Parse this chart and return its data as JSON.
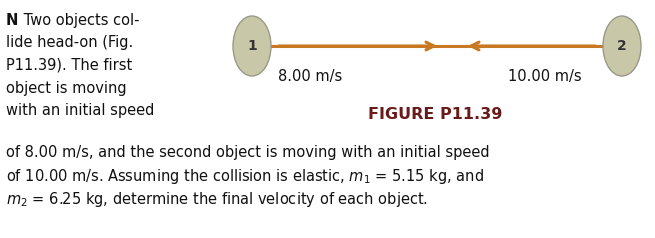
{
  "bg_color": "#ffffff",
  "ball_color": "#c8c8a8",
  "ball_edge_color": "#999988",
  "arrow_color": "#c87820",
  "arrow_lw": 2.2,
  "arrow_mutation_scale": 14,
  "label1": "1",
  "label2": "2",
  "speed1_text": "8.00 m/s",
  "speed2_text": "10.00 m/s",
  "figure_caption": "FIGURE P11.39",
  "caption_color": "#6b1a1a",
  "text_color": "#111111",
  "bold_n": "N",
  "left_lines": [
    " Two objects col-",
    "lide head-on (Fig.",
    "P11.39). The first",
    "object is moving",
    "with an initial speed"
  ],
  "bottom_lines": [
    "of 8.00 m/s, and the second object is moving with an initial speed",
    "of 10.00 m/s. Assuming the collision is elastic, $m_1$ = 5.15 kg, and",
    "$m_2$ = 6.25 kg, determine the final velocity of each object."
  ],
  "font_size": 10.5,
  "caption_font_size": 11.5
}
